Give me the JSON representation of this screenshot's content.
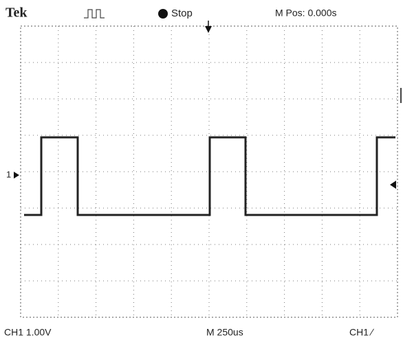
{
  "header": {
    "brand": "Tek",
    "status": "Stop",
    "position": "M Pos: 0.000s"
  },
  "channel_marker": "1",
  "footer": {
    "channel": "CH1 1.00V",
    "timebase": "M 250us",
    "trigger": "CH1 ∕"
  }
}
